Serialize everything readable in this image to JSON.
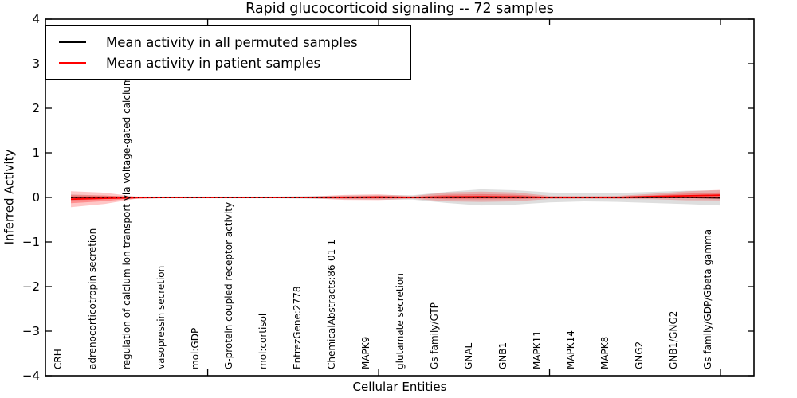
{
  "title": "Rapid glucocorticoid signaling -- 72 samples",
  "legend": {
    "items": [
      {
        "label": "Mean activity in all permuted samples",
        "color": "#000000"
      },
      {
        "label": "Mean activity in patient samples",
        "color": "#ff0000"
      }
    ]
  },
  "chart_data": {
    "type": "line",
    "title": "Rapid glucocorticoid signaling -- 72 samples",
    "xlabel": "Cellular Entities",
    "ylabel": "Inferred Activity",
    "ylim": [
      -4,
      4
    ],
    "yticks": [
      4,
      3,
      2,
      1,
      0,
      -1,
      -2,
      -3,
      -4
    ],
    "ytick_labels": [
      "4",
      "3",
      "2",
      "1",
      "0",
      "−1",
      "−2",
      "−3",
      "−4"
    ],
    "xtick_indices": [
      4,
      9,
      14,
      19
    ],
    "grid": false,
    "legend_position": "upper left",
    "zero_reference_line": 0,
    "colors": {
      "permuted_line": "#000000",
      "patient_line": "#ff0000",
      "permuted_band": "#000000",
      "patient_band": "#ff0000"
    },
    "categories": [
      "CRH",
      "adrenocorticotropin secretion",
      "regulation of calcium ion transport via voltage-gated calcium channel",
      "vasopressin secretion",
      "mol:GDP",
      "G-protein coupled receptor activity",
      "mol:cortisol",
      "EntrezGene:2778",
      "ChemicalAbstracts:86-01-1",
      "MAPK9",
      "glutamate secretion",
      "Gs family/GTP",
      "GNAL",
      "GNB1",
      "MAPK11",
      "MAPK14",
      "MAPK8",
      "GNG2",
      "GNB1/GNG2",
      "Gs family/GDP/Gbeta gamma"
    ],
    "series": [
      {
        "name": "Mean activity in all permuted samples",
        "color": "#000000",
        "values": [
          0,
          0,
          0,
          0,
          0,
          0,
          0,
          0,
          0,
          0,
          0,
          0,
          0,
          0,
          0,
          0,
          0,
          0,
          0,
          -0.01
        ],
        "band_halfwidths": [
          0.07,
          0.04,
          0.02,
          0.02,
          0.02,
          0.02,
          0.02,
          0.03,
          0.04,
          0.05,
          0.05,
          0.125,
          0.18,
          0.16,
          0.11,
          0.09,
          0.1,
          0.125,
          0.15,
          0.17
        ]
      },
      {
        "name": "Mean activity in patient samples",
        "color": "#ff0000",
        "values": [
          -0.04,
          -0.02,
          -0.005,
          0,
          0,
          0,
          0,
          0,
          0,
          0.005,
          0,
          0.01,
          0.015,
          0.01,
          0,
          0,
          0,
          0.02,
          0.035,
          0.05
        ],
        "band_halfwidths": [
          0.18,
          0.125,
          0.012,
          0.01,
          0.01,
          0.01,
          0.01,
          0.02,
          0.055,
          0.065,
          0.03,
          0.1,
          0.115,
          0.1,
          0.035,
          0.03,
          0.035,
          0.06,
          0.1,
          0.12
        ]
      }
    ]
  }
}
